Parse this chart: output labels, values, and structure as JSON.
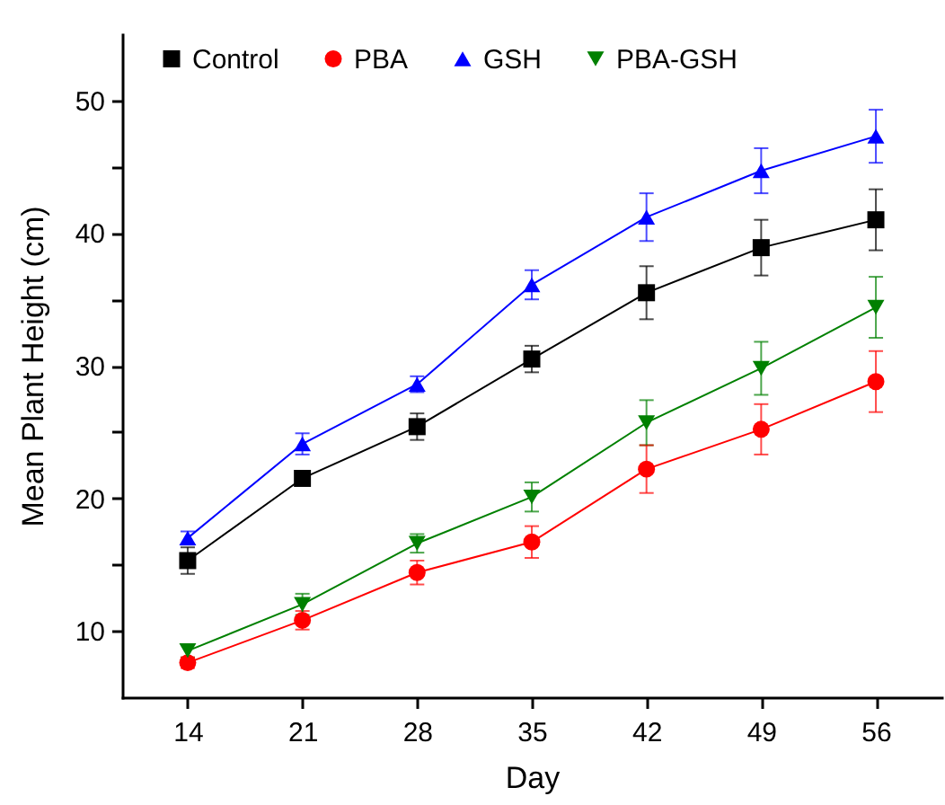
{
  "chart_data": {
    "type": "line",
    "xlabel": "Day",
    "ylabel": "Mean Plant Height (cm)",
    "x": [
      14,
      21,
      28,
      35,
      42,
      49,
      56
    ],
    "xlim": [
      10,
      60
    ],
    "xticks": [
      14,
      21,
      28,
      35,
      42,
      49,
      56
    ],
    "ylim": [
      5,
      55
    ],
    "yticks": [
      10,
      {
        "value": 15,
        "label": null
      },
      20,
      {
        "value": 25,
        "label": null
      },
      30,
      {
        "value": 35,
        "label": null
      },
      40,
      {
        "value": 45,
        "label": null
      },
      50
    ],
    "grid": false,
    "legend": "top",
    "line_style": "solid",
    "series": [
      {
        "name": "Control",
        "color": "#000000",
        "marker": "square",
        "values": [
          15.3,
          21.5,
          25.4,
          30.5,
          35.5,
          38.9,
          41.0
        ],
        "errors": [
          1.0,
          0.5,
          1.0,
          1.0,
          2.0,
          2.1,
          2.3
        ]
      },
      {
        "name": "PBA",
        "color": "#ff0000",
        "marker": "circle",
        "values": [
          7.6,
          10.8,
          14.4,
          16.7,
          22.2,
          25.2,
          28.8
        ],
        "errors": [
          0.4,
          0.7,
          0.9,
          1.2,
          1.8,
          1.9,
          2.3
        ]
      },
      {
        "name": "GSH",
        "color": "#0000ff",
        "marker": "triangle",
        "values": [
          17.0,
          24.1,
          28.6,
          36.1,
          41.2,
          44.7,
          47.3
        ],
        "errors": [
          0.5,
          0.8,
          0.6,
          1.1,
          1.8,
          1.7,
          2.0
        ]
      },
      {
        "name": "PBA-GSH",
        "color": "#008000",
        "marker": "triangle-down",
        "values": [
          8.5,
          12.0,
          16.6,
          20.1,
          25.7,
          29.8,
          34.4
        ],
        "errors": [
          0.5,
          0.8,
          0.7,
          1.1,
          1.7,
          2.0,
          2.3
        ]
      }
    ]
  }
}
